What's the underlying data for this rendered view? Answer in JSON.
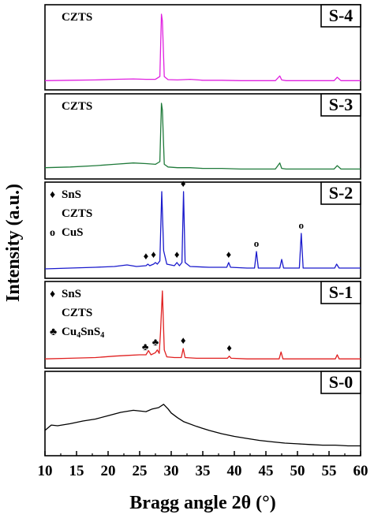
{
  "chart_data": {
    "type": "line",
    "xlabel": "Bragg angle 2θ (°)",
    "ylabel": "Intensity (a.u.)",
    "xlim": [
      10,
      60
    ],
    "xticks": [
      10,
      15,
      20,
      25,
      30,
      35,
      40,
      45,
      50,
      55,
      60
    ],
    "stacked_panels": true,
    "panels": [
      {
        "label": "S-4",
        "color": "#e020e0",
        "legend": [
          {
            "text": "CZTS",
            "symbol": ""
          }
        ],
        "x": [
          10,
          14,
          18,
          21,
          24,
          26,
          27.5,
          28.2,
          28.45,
          28.6,
          28.9,
          29.5,
          31,
          33,
          35,
          38,
          41,
          44,
          46.5,
          47.2,
          47.5,
          48.2,
          50,
          53,
          55.8,
          56.3,
          56.9,
          58,
          60
        ],
        "y": [
          0.02,
          0.025,
          0.03,
          0.04,
          0.045,
          0.04,
          0.04,
          0.08,
          1.0,
          0.9,
          0.08,
          0.035,
          0.03,
          0.04,
          0.025,
          0.025,
          0.02,
          0.02,
          0.02,
          0.09,
          0.03,
          0.02,
          0.02,
          0.02,
          0.02,
          0.07,
          0.02,
          0.02,
          0.02
        ]
      },
      {
        "label": "S-3",
        "color": "#1f7a3a",
        "legend": [
          {
            "text": "CZTS",
            "symbol": ""
          }
        ],
        "x": [
          10,
          14,
          18,
          21,
          24,
          26,
          27.5,
          28.2,
          28.45,
          28.6,
          28.9,
          29.5,
          31,
          33,
          35,
          38,
          41,
          44,
          46.5,
          47.2,
          47.5,
          48.2,
          50,
          53,
          55.8,
          56.3,
          56.9,
          58,
          60
        ],
        "y": [
          0.05,
          0.06,
          0.08,
          0.1,
          0.12,
          0.11,
          0.1,
          0.14,
          1.0,
          0.9,
          0.1,
          0.06,
          0.05,
          0.05,
          0.04,
          0.04,
          0.03,
          0.03,
          0.03,
          0.12,
          0.04,
          0.03,
          0.03,
          0.03,
          0.03,
          0.08,
          0.03,
          0.03,
          0.03
        ]
      },
      {
        "label": "S-2",
        "color": "#1a1acc",
        "legend": [
          {
            "text": "SnS",
            "symbol": "♦"
          },
          {
            "text": "CZTS",
            "symbol": ""
          },
          {
            "text": "CuS",
            "symbol": "o"
          }
        ],
        "x": [
          10,
          14,
          18,
          21,
          23,
          24.5,
          26,
          26.3,
          26.6,
          27.2,
          27.5,
          27.8,
          28.2,
          28.5,
          28.8,
          29.3,
          30.5,
          30.9,
          31.3,
          31.7,
          31.95,
          32.2,
          33,
          36,
          38.8,
          39.1,
          39.4,
          42,
          43.2,
          43.5,
          43.8,
          46,
          47.2,
          47.5,
          47.8,
          49.5,
          50.3,
          50.6,
          50.9,
          53,
          55.9,
          56.2,
          56.6,
          58,
          60
        ],
        "y": [
          0.02,
          0.03,
          0.04,
          0.05,
          0.07,
          0.05,
          0.06,
          0.08,
          0.06,
          0.08,
          0.1,
          0.08,
          0.12,
          1.0,
          0.25,
          0.08,
          0.06,
          0.1,
          0.06,
          0.1,
          1.0,
          0.1,
          0.05,
          0.04,
          0.04,
          0.1,
          0.04,
          0.03,
          0.03,
          0.24,
          0.03,
          0.03,
          0.03,
          0.14,
          0.03,
          0.03,
          0.03,
          0.47,
          0.03,
          0.03,
          0.03,
          0.08,
          0.03,
          0.03,
          0.03
        ]
      },
      {
        "label": "S-1",
        "color": "#e02020",
        "legend": [
          {
            "text": "SnS",
            "symbol": "♦"
          },
          {
            "text": "CZTS",
            "symbol": ""
          },
          {
            "text": "Cu4SnS4",
            "symbol": "♣"
          }
        ],
        "x": [
          10,
          14,
          18,
          21,
          23,
          25,
          26,
          26.4,
          26.8,
          27.5,
          27.8,
          28.1,
          28.3,
          28.6,
          28.9,
          29.3,
          30.5,
          31.6,
          31.9,
          32.2,
          34,
          38.9,
          39.2,
          39.5,
          42,
          46,
          47.1,
          47.4,
          47.7,
          50,
          53,
          56,
          56.3,
          56.6,
          58,
          60
        ],
        "y": [
          0.02,
          0.03,
          0.04,
          0.06,
          0.07,
          0.08,
          0.08,
          0.14,
          0.08,
          0.11,
          0.15,
          0.1,
          0.4,
          1.0,
          0.15,
          0.05,
          0.04,
          0.04,
          0.17,
          0.04,
          0.03,
          0.03,
          0.06,
          0.03,
          0.02,
          0.02,
          0.02,
          0.12,
          0.02,
          0.02,
          0.02,
          0.02,
          0.08,
          0.02,
          0.02,
          0.02
        ]
      },
      {
        "label": "S-0",
        "color": "#000000",
        "legend": [],
        "x": [
          10,
          11,
          12,
          14,
          16,
          18,
          20,
          22,
          24,
          26,
          27,
          28,
          28.8,
          29.5,
          30,
          31,
          32,
          34,
          36,
          38,
          40,
          42,
          44,
          46,
          48,
          50,
          52,
          54,
          56,
          58,
          60
        ],
        "y": [
          0.26,
          0.34,
          0.33,
          0.36,
          0.4,
          0.43,
          0.48,
          0.53,
          0.56,
          0.54,
          0.58,
          0.6,
          0.65,
          0.58,
          0.52,
          0.45,
          0.39,
          0.32,
          0.26,
          0.21,
          0.17,
          0.14,
          0.11,
          0.09,
          0.07,
          0.06,
          0.05,
          0.04,
          0.04,
          0.03,
          0.03
        ]
      }
    ],
    "annotations": [
      {
        "panel": "S-2",
        "x": 26.0,
        "symbol": "♦"
      },
      {
        "panel": "S-2",
        "x": 27.2,
        "symbol": "♦"
      },
      {
        "panel": "S-2",
        "x": 30.9,
        "symbol": "♦"
      },
      {
        "panel": "S-2",
        "x": 31.9,
        "symbol": "♦"
      },
      {
        "panel": "S-2",
        "x": 39.1,
        "symbol": "♦"
      },
      {
        "panel": "S-2",
        "x": 43.5,
        "symbol": "o"
      },
      {
        "panel": "S-2",
        "x": 50.6,
        "symbol": "o"
      },
      {
        "panel": "S-1",
        "x": 25.9,
        "symbol": "♣"
      },
      {
        "panel": "S-1",
        "x": 27.5,
        "symbol": "♣"
      },
      {
        "panel": "S-1",
        "x": 31.9,
        "symbol": "♦"
      },
      {
        "panel": "S-1",
        "x": 39.2,
        "symbol": "♦"
      }
    ]
  }
}
